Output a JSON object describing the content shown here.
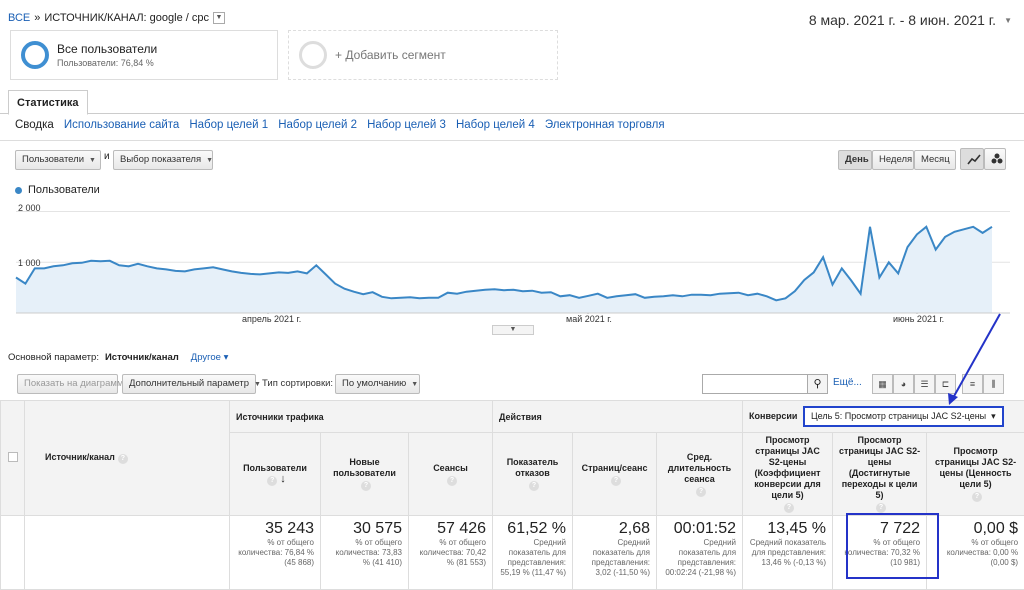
{
  "breadcrumb": {
    "root": "ВСЕ",
    "sep": "»",
    "current": "ИСТОЧНИК/КАНАЛ: google / cpc"
  },
  "date_range": "8 мар. 2021 г. - 8 июн. 2021 г.",
  "segments": [
    {
      "title": "Все пользователи",
      "subtitle": "Пользователи: 76,84 %"
    },
    {
      "title": "+ Добавить сегмент"
    }
  ],
  "tab": "Статистика",
  "subnav": [
    "Сводка",
    "Использование сайта",
    "Набор целей 1",
    "Набор целей 2",
    "Набор целей 3",
    "Набор целей 4",
    "Электронная торговля"
  ],
  "chart_controls": {
    "metric1": "Пользователи",
    "and": "и",
    "metric2": "Выбор показателя",
    "day": "День",
    "week": "Неделя",
    "month": "Месяц"
  },
  "chart_data": {
    "type": "line",
    "series": [
      {
        "name": "Пользователи",
        "color": "#3a87c6",
        "values": [
          700,
          580,
          880,
          880,
          920,
          940,
          980,
          990,
          1030,
          1020,
          1030,
          940,
          920,
          970,
          920,
          880,
          860,
          830,
          820,
          860,
          880,
          900,
          860,
          820,
          790,
          770,
          760,
          780,
          800,
          790,
          820,
          780,
          940,
          760,
          580,
          480,
          420,
          370,
          410,
          320,
          290,
          300,
          310,
          290,
          300,
          300,
          400,
          380,
          420,
          440,
          460,
          470,
          450,
          460,
          430,
          440,
          400,
          410,
          330,
          350,
          300,
          340,
          380,
          300,
          330,
          350,
          370,
          300,
          320,
          330,
          350,
          330,
          360,
          360,
          350,
          380,
          390,
          400,
          350,
          380,
          330,
          250,
          290,
          430,
          650,
          800,
          1100,
          560,
          880,
          640,
          380,
          1700,
          700,
          1000,
          780,
          1300,
          1550,
          1700,
          1250,
          1500,
          1600,
          1650,
          1700,
          1580,
          1700
        ]
      }
    ],
    "y_ticks": [
      "2 000",
      "1 000"
    ],
    "x_ticks": [
      "апрель 2021 г.",
      "май 2021 г.",
      "июнь 2021 г."
    ],
    "ylim": [
      0,
      2000
    ]
  },
  "dimension": {
    "label": "Основной параметр:",
    "value": "Источник/канал",
    "other": "Другое"
  },
  "table_toolbar": {
    "show_on_chart": "Показать на диаграмме",
    "secondary": "Дополнительный параметр",
    "sort_label": "Тип сортировки:",
    "sort_value": "По умолчанию",
    "advanced": "Ещё..."
  },
  "table": {
    "dim_header": "Источник/канал",
    "groups": {
      "traffic": "Источники трафика",
      "actions": "Действия",
      "conversions": "Конверсии",
      "goal_select": "Цель 5: Просмотр страницы JAC S2-цены"
    },
    "columns": [
      {
        "label": "Пользователи",
        "value": "35 243",
        "sub": "% от общего количества: 76,84 % (45 868)"
      },
      {
        "label": "Новые пользователи",
        "value": "30 575",
        "sub": "% от общего количества: 73,83 % (41 410)"
      },
      {
        "label": "Сеансы",
        "value": "57 426",
        "sub": "% от общего количества: 70,42 % (81 553)"
      },
      {
        "label": "Показатель отказов",
        "value": "61,52 %",
        "sub": "Средний показатель для представления: 55,19 % (11,47 %)"
      },
      {
        "label": "Страниц/сеанс",
        "value": "2,68",
        "sub": "Средний показатель для представления: 3,02 (-11,50 %)"
      },
      {
        "label": "Сред. длительность сеанса",
        "value": "00:01:52",
        "sub": "Средний показатель для представления: 00:02:24 (-21,98 %)"
      },
      {
        "label": "Просмотр страницы JAC S2-цены (Коэффициент конверсии для цели 5)",
        "value": "13,45 %",
        "sub": "Средний показатель для представления: 13,46 % (-0,13 %)"
      },
      {
        "label": "Просмотр страницы JAC S2-цены (Достигнутые переходы к цели 5)",
        "value": "7 722",
        "sub": "% от общего количества: 70,32 % (10 981)"
      },
      {
        "label": "Просмотр страницы JAC S2-цены (Ценность цели 5)",
        "value": "0,00 $",
        "sub": "% от общего количества: 0,00 % (0,00 $)"
      }
    ]
  }
}
